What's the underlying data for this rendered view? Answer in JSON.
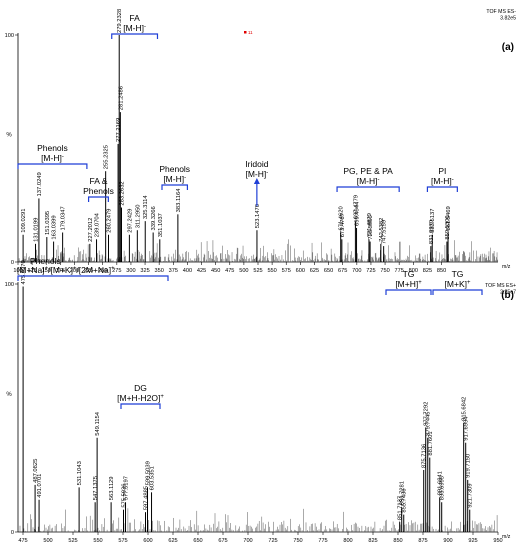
{
  "chart_data": [
    {
      "type": "mass-spectrum",
      "panel_label": "(a)",
      "instrument": [
        "TOF MS ES-",
        "3.82e5"
      ],
      "marker": "11",
      "xlabel": "m/z",
      "ylabel": "%",
      "xlim": [
        100,
        950
      ],
      "ylim": [
        0,
        100
      ],
      "x_ticks": [
        100,
        125,
        150,
        175,
        200,
        225,
        250,
        275,
        300,
        325,
        350,
        375,
        400,
        425,
        450,
        475,
        500,
        525,
        550,
        575,
        600,
        625,
        650,
        675,
        700,
        725,
        750,
        775,
        800,
        825,
        850
      ],
      "y_ticks": [
        0,
        100
      ],
      "labeled_peaks": [
        {
          "mz": 109.0291,
          "rel": 12
        },
        {
          "mz": 131.0199,
          "rel": 8
        },
        {
          "mz": 151.0395,
          "rel": 11
        },
        {
          "mz": 163.0399,
          "rel": 9
        },
        {
          "mz": 179.0347,
          "rel": 13
        },
        {
          "mz": 137.0249,
          "rel": 28
        },
        {
          "mz": 227.2012,
          "rel": 8
        },
        {
          "mz": 239.0704,
          "rel": 10
        },
        {
          "mz": 255.2325,
          "rel": 40
        },
        {
          "mz": 260.2479,
          "rel": 12
        },
        {
          "mz": 277.2169,
          "rel": 52
        },
        {
          "mz": 279.2328,
          "rel": 100
        },
        {
          "mz": 281.2486,
          "rel": 66
        },
        {
          "mz": 283.2632,
          "rel": 24
        },
        {
          "mz": 297.2429,
          "rel": 12
        },
        {
          "mz": 311.295,
          "rel": 14
        },
        {
          "mz": 325.3114,
          "rel": 18
        },
        {
          "mz": 339.3266,
          "rel": 13
        },
        {
          "mz": 351.1037,
          "rel": 10
        },
        {
          "mz": 383.1164,
          "rel": 21
        },
        {
          "mz": 523.147,
          "rel": 14
        },
        {
          "mz": 671.462,
          "rel": 13
        },
        {
          "mz": 673.4767,
          "rel": 10
        },
        {
          "mz": 697.4779,
          "rel": 18
        },
        {
          "mz": 699.4944,
          "rel": 15
        },
        {
          "mz": 721.4879,
          "rel": 10
        },
        {
          "mz": 723.5056,
          "rel": 9
        },
        {
          "mz": 742.5382,
          "rel": 8
        },
        {
          "mz": 747.5159,
          "rel": 7
        },
        {
          "mz": 831.097,
          "rel": 7
        },
        {
          "mz": 833.5137,
          "rel": 12
        },
        {
          "mz": 859.53,
          "rel": 9
        },
        {
          "mz": 861.5469,
          "rel": 13
        }
      ],
      "annotations": [
        {
          "lines": [
            "FA",
            "[M-H]-"
          ],
          "from": 266,
          "to": 347,
          "arrow": false
        },
        {
          "lines": [
            "Phenols",
            "[M-H]-"
          ],
          "from": 100,
          "to": 222,
          "arrow": false
        },
        {
          "lines": [
            "FA &",
            "Phenols"
          ],
          "from": 225,
          "to": 260,
          "arrow": false
        },
        {
          "lines": [
            "Phenols",
            "[M-H]-"
          ],
          "from": 355,
          "to": 400,
          "arrow": false
        },
        {
          "lines": [
            "Iridoid",
            "[M-H]-"
          ],
          "from": 523,
          "to": 523,
          "arrow": true
        },
        {
          "lines": [
            "PG, PE & PA",
            "[M-H]-"
          ],
          "from": 665,
          "to": 775,
          "arrow": false
        },
        {
          "lines": [
            "PI",
            "[M-H]-"
          ],
          "from": 825,
          "to": 878,
          "arrow": false
        }
      ]
    },
    {
      "type": "mass-spectrum",
      "panel_label": "(b)",
      "instrument": [
        "TOF MS ES+",
        "2.25e7"
      ],
      "xlabel": "m/z",
      "ylabel": "%",
      "xlim": [
        470,
        950
      ],
      "ylim": [
        0,
        100
      ],
      "x_ticks": [
        475,
        500,
        525,
        550,
        575,
        600,
        625,
        650,
        675,
        700,
        725,
        750,
        775,
        800,
        825,
        850,
        875,
        900,
        925,
        950
      ],
      "y_ticks": [
        0,
        100
      ],
      "labeled_peaks": [
        {
          "mz": 475.097,
          "rel": 99
        },
        {
          "mz": 487.0825,
          "rel": 19
        },
        {
          "mz": 491.0701,
          "rel": 13
        },
        {
          "mz": 531.1043,
          "rel": 18
        },
        {
          "mz": 547.1375,
          "rel": 12
        },
        {
          "mz": 549.1154,
          "rel": 38
        },
        {
          "mz": 563.1129,
          "rel": 12
        },
        {
          "mz": 575.5036,
          "rel": 9
        },
        {
          "mz": 577.5197,
          "rel": 12
        },
        {
          "mz": 597.4885,
          "rel": 8
        },
        {
          "mz": 599.5039,
          "rel": 18
        },
        {
          "mz": 603.5351,
          "rel": 16
        },
        {
          "mz": 851.7137,
          "rel": 4
        },
        {
          "mz": 853.7281,
          "rel": 10
        },
        {
          "mz": 855.7436,
          "rel": 7
        },
        {
          "mz": 875.7136,
          "rel": 25
        },
        {
          "mz": 877.7292,
          "rel": 42
        },
        {
          "mz": 879.7445,
          "rel": 38
        },
        {
          "mz": 881.7601,
          "rel": 30
        },
        {
          "mz": 891.6841,
          "rel": 14
        },
        {
          "mz": 893.6995,
          "rel": 12
        },
        {
          "mz": 915.6842,
          "rel": 44
        },
        {
          "mz": 917.6994,
          "rel": 36
        },
        {
          "mz": 919.715,
          "rel": 21
        },
        {
          "mz": 921.7309,
          "rel": 9
        }
      ],
      "annotations": [
        {
          "lines": [
            "[M+Na]+/[M+K]+/[2M+Na]+"
          ],
          "from": 470,
          "to": 620,
          "arrow": false
        },
        {
          "lines": [
            "DG",
            "[M+H-H2O]+"
          ],
          "from": 573,
          "to": 612,
          "arrow": false
        },
        {
          "lines": [
            "TG",
            "[M+H]+"
          ],
          "from": 838,
          "to": 883,
          "arrow": false
        },
        {
          "lines": [
            "TG",
            "[M+K]+"
          ],
          "from": 885,
          "to": 934,
          "arrow": false
        }
      ],
      "top_left_label": "Phenols"
    }
  ]
}
